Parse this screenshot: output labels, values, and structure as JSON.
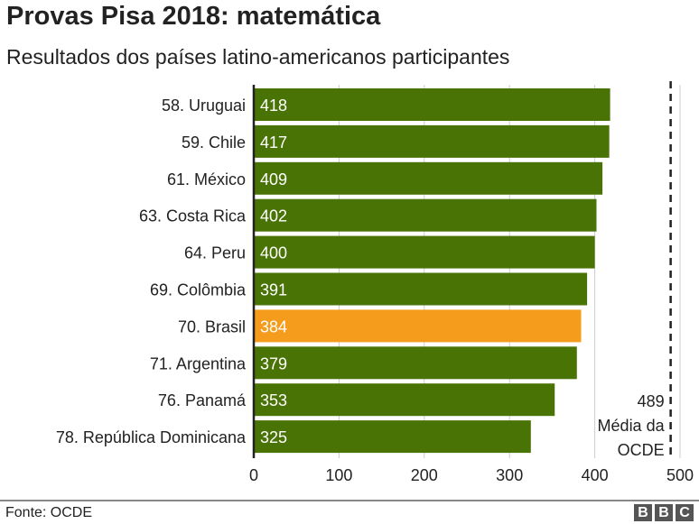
{
  "title": "Provas Pisa 2018: matemática",
  "subtitle": "Resultados dos países latino-americanos participantes",
  "source": "Fonte: OCDE",
  "logo": "BBC",
  "chart_data": {
    "type": "bar",
    "orientation": "horizontal",
    "categories": [
      "58. Uruguai",
      "59. Chile",
      "61. México",
      "63. Costa Rica",
      "64. Peru",
      "69. Colômbia",
      "70. Brasil",
      "71. Argentina",
      "76. Panamá",
      "78. República Dominicana"
    ],
    "values": [
      418,
      417,
      409,
      402,
      400,
      391,
      384,
      379,
      353,
      325
    ],
    "highlight": "70. Brasil",
    "colors": {
      "default": "#4a7306",
      "highlight": "#f59c1c"
    },
    "xlim": [
      0,
      500
    ],
    "xticks": [
      0,
      100,
      200,
      300,
      400,
      500
    ],
    "grid": true,
    "reference_line": {
      "value": 489,
      "label_value": "489",
      "label_lines": [
        "Média da",
        "OCDE"
      ],
      "style": "dashed"
    }
  }
}
